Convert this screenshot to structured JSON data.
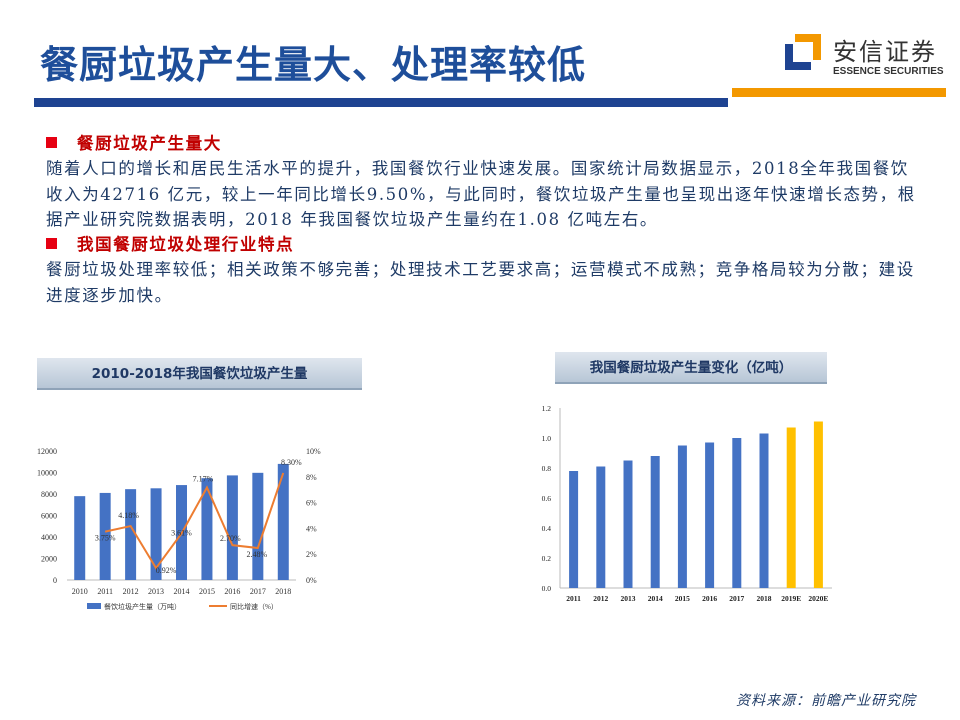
{
  "header": {
    "title": "餐厨垃圾产生量大、处理率较低",
    "logo_cn": "安信证券",
    "logo_en": "ESSENCE SECURITIES",
    "brand_blue": "#1e4391",
    "brand_orange": "#f39800"
  },
  "sections": [
    {
      "heading": "餐厨垃圾产生量大",
      "body": "随着人口的增长和居民生活水平的提升，我国餐饮行业快速发展。国家统计局数据显示，2018全年我国餐饮收入为42716 亿元，较上一年同比增长9.50%，与此同时，餐饮垃圾产生量也呈现出逐年快速增长态势，根据产业研究院数据表明，2018 年我国餐饮垃圾产生量约在1.08 亿吨左右。"
    },
    {
      "heading": "我国餐厨垃圾处理行业特点",
      "body": "餐厨垃圾处理率较低；相关政策不够完善；处理技术工艺要求高；运营模式不成熟；竞争格局较为分散；建设进度逐步加快。"
    }
  ],
  "chart_data": [
    {
      "type": "bar+line",
      "title": "2010-2018年我国餐饮垃圾产生量",
      "categories": [
        "2010",
        "2011",
        "2012",
        "2013",
        "2014",
        "2015",
        "2016",
        "2017",
        "2018"
      ],
      "series": [
        {
          "name": "餐饮垃圾产生量（万吨）",
          "type": "bar",
          "axis": "left",
          "color": "#4472c4",
          "values": [
            7800,
            8100,
            8450,
            8530,
            8830,
            9470,
            9730,
            9970,
            10800
          ]
        },
        {
          "name": "同比增速（%）",
          "type": "line",
          "axis": "right",
          "color": "#ed7d31",
          "values": [
            null,
            3.75,
            4.18,
            0.92,
            3.61,
            7.17,
            2.7,
            2.48,
            8.3
          ],
          "labels": [
            "",
            "3.75%",
            "4.18%",
            "0.92%",
            "3.61%",
            "7.17%",
            "2.70%",
            "2.48%",
            "8.30%"
          ]
        }
      ],
      "ylim": [
        0,
        12000
      ],
      "yticks": [
        "0",
        "2000",
        "4000",
        "6000",
        "8000",
        "10000",
        "12000"
      ],
      "y2lim": [
        0,
        10
      ],
      "y2ticks": [
        "0%",
        "2%",
        "4%",
        "6%",
        "8%",
        "10%"
      ],
      "legend": "bottom",
      "grid": false
    },
    {
      "type": "bar",
      "title": "我国餐厨垃圾产生量变化（亿吨）",
      "categories": [
        "2011",
        "2012",
        "2013",
        "2014",
        "2015",
        "2016",
        "2017",
        "2018",
        "2019E",
        "2020E"
      ],
      "values": [
        0.78,
        0.81,
        0.85,
        0.88,
        0.95,
        0.97,
        1.0,
        1.03,
        1.07,
        1.11
      ],
      "colors": [
        "#4472c4",
        "#4472c4",
        "#4472c4",
        "#4472c4",
        "#4472c4",
        "#4472c4",
        "#4472c4",
        "#4472c4",
        "#ffc000",
        "#ffc000"
      ],
      "ylim": [
        0,
        1.2
      ],
      "yticks": [
        "0.0",
        "0.2",
        "0.4",
        "0.6",
        "0.8",
        "1.0",
        "1.2"
      ],
      "grid": false
    }
  ],
  "footer": {
    "source": "资料来源：前瞻产业研究院"
  }
}
